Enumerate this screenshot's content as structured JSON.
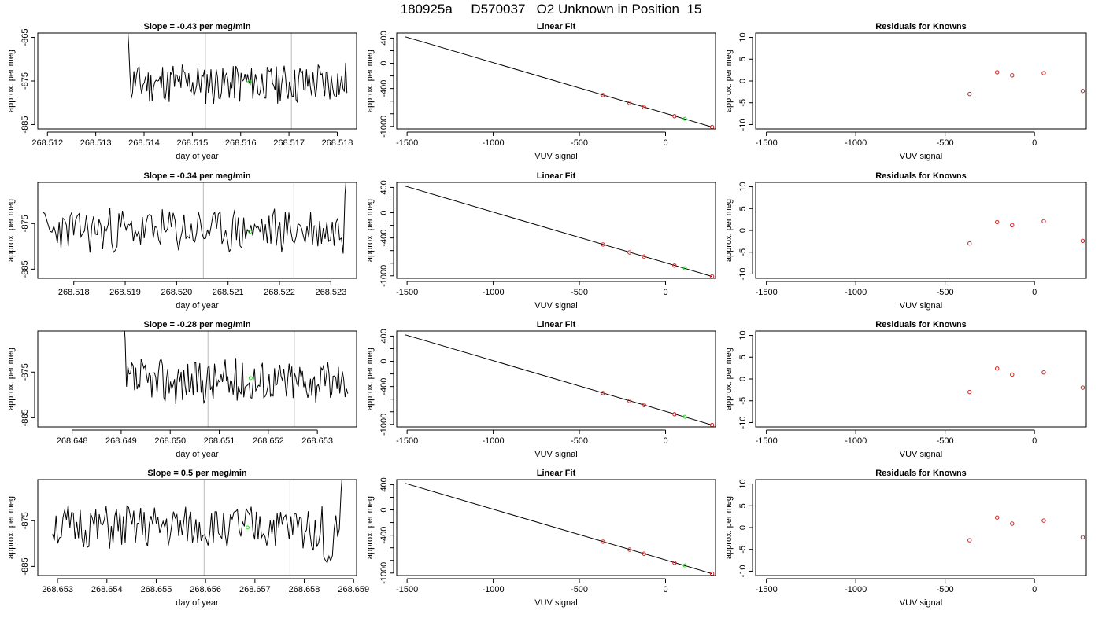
{
  "figure": {
    "title": "180925a     D570037   O2 Unknown in Position  15"
  },
  "colors": {
    "known": "#d62020",
    "unknown": "#22dd22",
    "trace": "#000000",
    "marker_line": "#bbbbbb",
    "axis": "#000000"
  },
  "chart_data": [
    {
      "type": "line",
      "panel": "trace",
      "row": 1,
      "title": "Slope =  -0.43  per meg/min",
      "xlabel": "day of year",
      "ylabel": "approx. per meg",
      "xlim": [
        268.5118,
        268.5184
      ],
      "ylim": [
        -886,
        -864
      ],
      "xticks": [
        268.512,
        268.513,
        268.514,
        268.515,
        268.516,
        268.517,
        268.518
      ],
      "xtick_labels": [
        "268.512",
        "268.513",
        "268.514",
        "268.515",
        "268.516",
        "268.517",
        "268.518"
      ],
      "yticks": [
        -865,
        -875,
        -885
      ],
      "ytick_labels": [
        "-865",
        "-875",
        "-885"
      ],
      "vlines": [
        268.51527,
        268.51705
      ],
      "series": [
        {
          "shape": "spike_start",
          "start": 268.5136,
          "end": 268.5182,
          "mean": -875.5,
          "amp": 2.5,
          "seed": 11
        }
      ],
      "unknown_point": {
        "x": 268.51618,
        "y": -875.2
      }
    },
    {
      "type": "scatter",
      "panel": "fit",
      "row": 1,
      "title": "Linear Fit",
      "xlabel": "VUV signal",
      "ylabel": "approx. per meg",
      "xlim": [
        -1560,
        290
      ],
      "ylim": [
        -1040,
        480
      ],
      "xticks": [
        -1500,
        -1000,
        -500,
        0
      ],
      "xtick_labels": [
        "-1500",
        "-1000",
        "-500",
        "0"
      ],
      "yticks": [
        400,
        0,
        -400,
        -1000
      ],
      "ytick_labels": [
        "400",
        "0",
        "-400",
        "-1000"
      ],
      "minor_yticks": [
        200,
        -200,
        -600,
        -800
      ],
      "fit_line": {
        "x": [
          -1510,
          270
        ],
        "y": [
          420,
          -1010
        ]
      },
      "known_points": [
        {
          "x": -363,
          "y": -503
        },
        {
          "x": -209,
          "y": -629
        },
        {
          "x": -125,
          "y": -694
        },
        {
          "x": 52,
          "y": -838
        },
        {
          "x": 270,
          "y": -1010
        }
      ],
      "unknown_point": {
        "x": 112,
        "y": -880
      }
    },
    {
      "type": "scatter",
      "panel": "residuals",
      "row": 1,
      "title": "Residuals for Knowns",
      "xlabel": "VUV signal",
      "ylabel": "approx. per meg",
      "xlim": [
        -1560,
        290
      ],
      "ylim": [
        -11,
        11
      ],
      "xticks": [
        -1500,
        -1000,
        -500,
        0
      ],
      "xtick_labels": [
        "-1500",
        "-1000",
        "-500",
        "0"
      ],
      "yticks": [
        10,
        5,
        0,
        -5,
        -10
      ],
      "ytick_labels": [
        "10",
        "5",
        "0",
        "-5",
        "-10"
      ],
      "known_points": [
        {
          "x": -363,
          "y": -3.0
        },
        {
          "x": -209,
          "y": 2.0
        },
        {
          "x": -125,
          "y": 1.3
        },
        {
          "x": 52,
          "y": 1.8
        },
        {
          "x": 270,
          "y": -2.3
        }
      ]
    },
    {
      "type": "line",
      "panel": "trace",
      "row": 2,
      "title": "Slope =  -0.34  per meg/min",
      "xlabel": "day of year",
      "ylabel": "approx. per meg",
      "xlim": [
        268.5173,
        268.5235
      ],
      "ylim": [
        -887,
        -866
      ],
      "xticks": [
        268.518,
        268.519,
        268.52,
        268.521,
        268.522,
        268.523
      ],
      "xtick_labels": [
        "268.518",
        "268.519",
        "268.520",
        "268.521",
        "268.522",
        "268.523"
      ],
      "yticks": [
        -875,
        -885
      ],
      "ytick_labels": [
        "-875",
        "-885"
      ],
      "vlines": [
        268.52052,
        268.52228
      ],
      "series": [
        {
          "shape": "spike_end",
          "start": 268.5174,
          "end": 268.52338,
          "mean": -876.5,
          "amp": 2.5,
          "seed": 23
        }
      ],
      "unknown_point": {
        "x": 268.52143,
        "y": -876.8
      }
    },
    {
      "type": "scatter",
      "panel": "fit",
      "row": 2,
      "title": "Linear Fit",
      "xlabel": "VUV signal",
      "ylabel": "approx. per meg",
      "xlim": [
        -1560,
        290
      ],
      "ylim": [
        -1040,
        480
      ],
      "xticks": [
        -1500,
        -1000,
        -500,
        0
      ],
      "xtick_labels": [
        "-1500",
        "-1000",
        "-500",
        "0"
      ],
      "yticks": [
        400,
        0,
        -400,
        -1000
      ],
      "ytick_labels": [
        "400",
        "0",
        "-400",
        "-1000"
      ],
      "minor_yticks": [
        200,
        -200,
        -600,
        -800
      ],
      "fit_line": {
        "x": [
          -1510,
          270
        ],
        "y": [
          420,
          -1010
        ]
      },
      "known_points": [
        {
          "x": -363,
          "y": -503
        },
        {
          "x": -209,
          "y": -629
        },
        {
          "x": -125,
          "y": -694
        },
        {
          "x": 52,
          "y": -838
        },
        {
          "x": 270,
          "y": -1010
        }
      ],
      "unknown_point": {
        "x": 112,
        "y": -880
      }
    },
    {
      "type": "scatter",
      "panel": "residuals",
      "row": 2,
      "title": "Residuals for Knowns",
      "xlabel": "VUV signal",
      "ylabel": "approx. per meg",
      "xlim": [
        -1560,
        290
      ],
      "ylim": [
        -11,
        11
      ],
      "xticks": [
        -1500,
        -1000,
        -500,
        0
      ],
      "xtick_labels": [
        "-1500",
        "-1000",
        "-500",
        "0"
      ],
      "yticks": [
        10,
        5,
        0,
        -5,
        -10
      ],
      "ytick_labels": [
        "10",
        "5",
        "0",
        "-5",
        "-10"
      ],
      "known_points": [
        {
          "x": -363,
          "y": -3.0
        },
        {
          "x": -209,
          "y": 1.9
        },
        {
          "x": -125,
          "y": 1.2
        },
        {
          "x": 52,
          "y": 2.1
        },
        {
          "x": 270,
          "y": -2.4
        }
      ]
    },
    {
      "type": "line",
      "panel": "trace",
      "row": 3,
      "title": "Slope =  -0.28  per meg/min",
      "xlabel": "day of year",
      "ylabel": "approx. per meg",
      "xlim": [
        268.6473,
        268.6538
      ],
      "ylim": [
        -887,
        -866
      ],
      "xticks": [
        268.648,
        268.649,
        268.65,
        268.651,
        268.652,
        268.653
      ],
      "xtick_labels": [
        "268.648",
        "268.649",
        "268.650",
        "268.651",
        "268.652",
        "268.653"
      ],
      "yticks": [
        -875,
        -885
      ],
      "ytick_labels": [
        "-875",
        "-885"
      ],
      "vlines": [
        268.65077,
        268.65253
      ],
      "series": [
        {
          "shape": "spike_start",
          "start": 268.649,
          "end": 268.65362,
          "mean": -877,
          "amp": 2.5,
          "seed": 37
        }
      ],
      "unknown_point": {
        "x": 268.65164,
        "y": -876.3
      }
    },
    {
      "type": "scatter",
      "panel": "fit",
      "row": 3,
      "title": "Linear Fit",
      "xlabel": "VUV signal",
      "ylabel": "approx. per meg",
      "xlim": [
        -1560,
        290
      ],
      "ylim": [
        -1040,
        480
      ],
      "xticks": [
        -1500,
        -1000,
        -500,
        0
      ],
      "xtick_labels": [
        "-1500",
        "-1000",
        "-500",
        "0"
      ],
      "yticks": [
        400,
        0,
        -400,
        -1000
      ],
      "ytick_labels": [
        "400",
        "0",
        "-400",
        "-1000"
      ],
      "minor_yticks": [
        200,
        -200,
        -600,
        -800
      ],
      "fit_line": {
        "x": [
          -1510,
          270
        ],
        "y": [
          420,
          -1010
        ]
      },
      "known_points": [
        {
          "x": -363,
          "y": -503
        },
        {
          "x": -209,
          "y": -629
        },
        {
          "x": -125,
          "y": -694
        },
        {
          "x": 52,
          "y": -838
        },
        {
          "x": 270,
          "y": -1010
        }
      ],
      "unknown_point": {
        "x": 112,
        "y": -880
      }
    },
    {
      "type": "scatter",
      "panel": "residuals",
      "row": 3,
      "title": "Residuals for Knowns",
      "xlabel": "VUV signal",
      "ylabel": "approx. per meg",
      "xlim": [
        -1560,
        290
      ],
      "ylim": [
        -11,
        11
      ],
      "xticks": [
        -1500,
        -1000,
        -500,
        0
      ],
      "xtick_labels": [
        "-1500",
        "-1000",
        "-500",
        "0"
      ],
      "yticks": [
        10,
        5,
        0,
        -5,
        -10
      ],
      "ytick_labels": [
        "10",
        "5",
        "0",
        "-5",
        "-10"
      ],
      "known_points": [
        {
          "x": -363,
          "y": -3.0
        },
        {
          "x": -209,
          "y": 2.4
        },
        {
          "x": -125,
          "y": 1.0
        },
        {
          "x": 52,
          "y": 1.5
        },
        {
          "x": 270,
          "y": -2.0
        }
      ]
    },
    {
      "type": "line",
      "panel": "trace",
      "row": 4,
      "title": "Slope =  0.5  per meg/min",
      "xlabel": "day of year",
      "ylabel": "approx. per meg",
      "xlim": [
        268.6526,
        268.65906
      ],
      "ylim": [
        -887,
        -866
      ],
      "xticks": [
        268.653,
        268.654,
        268.655,
        268.656,
        268.657,
        268.658,
        268.659
      ],
      "xtick_labels": [
        "268.653",
        "268.654",
        "268.655",
        "268.656",
        "268.657",
        "268.658",
        "268.659"
      ],
      "yticks": [
        -875,
        -885
      ],
      "ytick_labels": [
        "-875",
        "-885"
      ],
      "vlines": [
        268.65597,
        268.65771
      ],
      "series": [
        {
          "shape": "spike_end_dip",
          "start": 268.6529,
          "end": 268.65885,
          "mean": -876.5,
          "amp": 2.5,
          "seed": 51
        }
      ],
      "unknown_point": {
        "x": 268.65685,
        "y": -876.5
      }
    },
    {
      "type": "scatter",
      "panel": "fit",
      "row": 4,
      "title": "Linear Fit",
      "xlabel": "VUV signal",
      "ylabel": "approx. per meg",
      "xlim": [
        -1560,
        290
      ],
      "ylim": [
        -1040,
        480
      ],
      "xticks": [
        -1500,
        -1000,
        -500,
        0
      ],
      "xtick_labels": [
        "-1500",
        "-1000",
        "-500",
        "0"
      ],
      "yticks": [
        400,
        0,
        -400,
        -1000
      ],
      "ytick_labels": [
        "400",
        "0",
        "-400",
        "-1000"
      ],
      "minor_yticks": [
        200,
        -200,
        -600,
        -800
      ],
      "fit_line": {
        "x": [
          -1510,
          270
        ],
        "y": [
          420,
          -1010
        ]
      },
      "known_points": [
        {
          "x": -363,
          "y": -503
        },
        {
          "x": -209,
          "y": -629
        },
        {
          "x": -125,
          "y": -694
        },
        {
          "x": 52,
          "y": -838
        },
        {
          "x": 270,
          "y": -1010
        }
      ],
      "unknown_point": {
        "x": 112,
        "y": -880
      }
    },
    {
      "type": "scatter",
      "panel": "residuals",
      "row": 4,
      "title": "Residuals for Knowns",
      "xlabel": "VUV signal",
      "ylabel": "approx. per meg",
      "xlim": [
        -1560,
        290
      ],
      "ylim": [
        -11,
        11
      ],
      "xticks": [
        -1500,
        -1000,
        -500,
        0
      ],
      "xtick_labels": [
        "-1500",
        "-1000",
        "-500",
        "0"
      ],
      "yticks": [
        10,
        5,
        0,
        -5,
        -10
      ],
      "ytick_labels": [
        "10",
        "5",
        "0",
        "-5",
        "-10"
      ],
      "known_points": [
        {
          "x": -363,
          "y": -2.9
        },
        {
          "x": -209,
          "y": 2.3
        },
        {
          "x": -125,
          "y": 0.9
        },
        {
          "x": 52,
          "y": 1.6
        },
        {
          "x": 270,
          "y": -2.2
        }
      ]
    }
  ]
}
